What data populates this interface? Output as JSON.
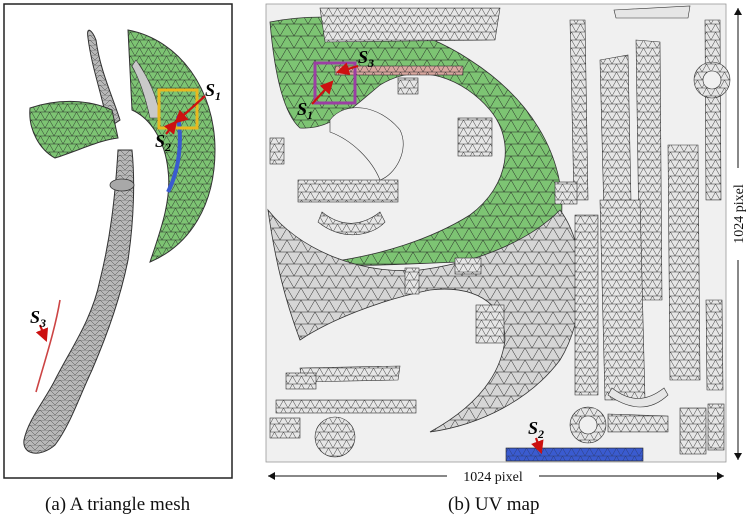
{
  "panel_a": {
    "caption": "(a) A triangle mesh",
    "labels": {
      "s1": "S",
      "s1_sub": "1",
      "s2": "S",
      "s2_sub": "2",
      "s3": "S",
      "s3_sub": "3"
    }
  },
  "panel_b": {
    "caption": "(b) UV map",
    "labels": {
      "s1": "S",
      "s1_sub": "1",
      "s2": "S",
      "s2_sub": "2",
      "s3": "S",
      "s3_sub": "3"
    },
    "width_label": "1024 pixel",
    "height_label": "1024 pixel"
  },
  "colors": {
    "green": "#7dc473",
    "gray_mesh": "#bdbdbd",
    "highlight_blue": "#3a5bd0",
    "highlight_red": "#d9534f",
    "pink_strip": "#d9a79f",
    "yellow_box": "#e9b81f",
    "purple_box": "#9b3fa3",
    "uv_background": "#f0f0f0"
  }
}
